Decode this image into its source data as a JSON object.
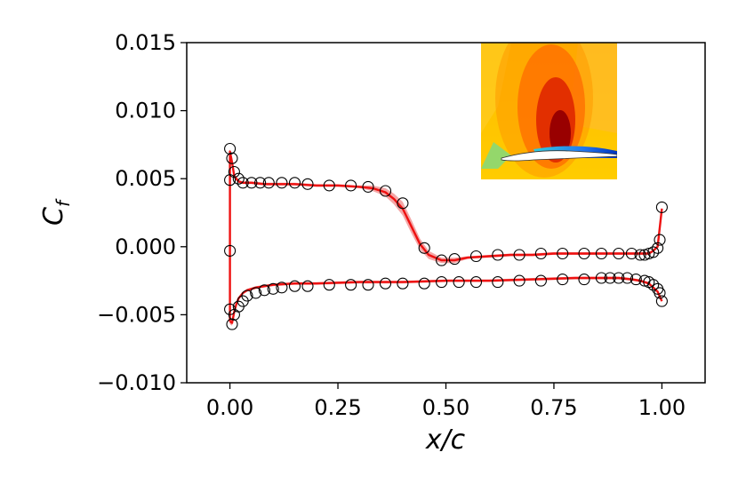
{
  "chart_data": {
    "type": "line",
    "xlabel": "x/c",
    "ylabel": "C",
    "ylabel_sub": "f",
    "xlim": [
      -0.1,
      1.1
    ],
    "ylim": [
      -0.01,
      0.015
    ],
    "xticks": [
      0.0,
      0.25,
      0.5,
      0.75,
      1.0
    ],
    "xtick_labels": [
      "0.00",
      "0.25",
      "0.50",
      "0.75",
      "1.00"
    ],
    "yticks": [
      -0.01,
      -0.005,
      0.0,
      0.005,
      0.01,
      0.015
    ],
    "ytick_labels": [
      "−0.010",
      "−0.005",
      "0.000",
      "0.005",
      "0.010",
      "0.015"
    ],
    "grid": false,
    "colors": {
      "line": "#ee1111",
      "band": "#f08a8a",
      "marker": "#000000"
    },
    "series": [
      {
        "kind": "line",
        "color": "#ee1111",
        "x": [
          0.0,
          0.0,
          0.005,
          0.01,
          0.02,
          0.03,
          0.05,
          0.08,
          0.1,
          0.15,
          0.2,
          0.25,
          0.3,
          0.33,
          0.36,
          0.38,
          0.4,
          0.42,
          0.44,
          0.46,
          0.49,
          0.52,
          0.55,
          0.6,
          0.65,
          0.7,
          0.75,
          0.8,
          0.85,
          0.9,
          0.93,
          0.95,
          0.97,
          0.98,
          0.99,
          1.0
        ],
        "y": [
          -0.0055,
          0.007,
          0.0062,
          0.0052,
          0.0048,
          0.0047,
          0.0047,
          0.0046,
          0.0046,
          0.0046,
          0.0045,
          0.0045,
          0.0044,
          0.0043,
          0.004,
          0.0035,
          0.0028,
          0.0015,
          0.0002,
          -0.0006,
          -0.001,
          -0.001,
          -0.0008,
          -0.0007,
          -0.0006,
          -0.0006,
          -0.0005,
          -0.0005,
          -0.0005,
          -0.0005,
          -0.0005,
          -0.0005,
          -0.0005,
          -0.0003,
          0.0,
          0.0028
        ],
        "band": [
          0.0002,
          0.0002,
          0.0002,
          0.0002,
          0.0001,
          0.0001,
          0.0001,
          0.0001,
          0.0001,
          0.0001,
          0.0001,
          0.0001,
          0.0001,
          0.0002,
          0.0003,
          0.0004,
          0.0005,
          0.0005,
          0.0004,
          0.0003,
          0.0002,
          0.0002,
          0.0001,
          0.0001,
          0.0001,
          0.0001,
          0.0001,
          0.0001,
          0.0001,
          0.0001,
          0.0001,
          0.0001,
          0.0001,
          0.0001,
          0.0001,
          0.0001
        ]
      },
      {
        "kind": "line",
        "color": "#ee1111",
        "x": [
          0.0,
          0.005,
          0.01,
          0.015,
          0.02,
          0.03,
          0.04,
          0.06,
          0.08,
          0.1,
          0.15,
          0.2,
          0.3,
          0.4,
          0.5,
          0.6,
          0.7,
          0.8,
          0.85,
          0.9,
          0.93,
          0.95,
          0.97,
          0.98,
          0.99,
          1.0
        ],
        "y": [
          -0.0055,
          -0.0056,
          -0.0048,
          -0.0042,
          -0.0038,
          -0.0034,
          -0.0032,
          -0.003,
          -0.0029,
          -0.0028,
          -0.0027,
          -0.0027,
          -0.0026,
          -0.0026,
          -0.0025,
          -0.0025,
          -0.0024,
          -0.0023,
          -0.0023,
          -0.0023,
          -0.0024,
          -0.0025,
          -0.0027,
          -0.003,
          -0.0033,
          -0.004
        ],
        "band": [
          0.0002,
          0.0002,
          0.0002,
          0.0001,
          0.0001,
          0.0001,
          0.0001,
          0.0001,
          0.0001,
          0.0001,
          0.0001,
          0.0001,
          0.0001,
          0.0001,
          0.0001,
          0.0001,
          0.0001,
          0.0001,
          0.0001,
          0.0001,
          0.0001,
          0.0001,
          0.0001,
          0.0001,
          0.0001,
          0.0001
        ]
      },
      {
        "kind": "markers",
        "marker": "open-circle",
        "x": [
          0.0,
          0.0,
          0.0,
          0.005,
          0.01,
          0.02,
          0.03,
          0.05,
          0.07,
          0.09,
          0.12,
          0.15,
          0.18,
          0.23,
          0.28,
          0.32,
          0.36,
          0.4,
          0.45,
          0.49,
          0.52,
          0.57,
          0.62,
          0.67,
          0.72,
          0.77,
          0.82,
          0.86,
          0.9,
          0.93,
          0.95,
          0.96,
          0.97,
          0.98,
          0.99,
          0.995,
          1.0
        ],
        "y": [
          0.0072,
          0.0049,
          -0.0003,
          0.0065,
          0.0055,
          0.005,
          0.0047,
          0.0047,
          0.0047,
          0.0047,
          0.0047,
          0.0047,
          0.0046,
          0.0045,
          0.0045,
          0.0044,
          0.0041,
          0.0032,
          -0.0001,
          -0.001,
          -0.0009,
          -0.0007,
          -0.0006,
          -0.0006,
          -0.0005,
          -0.0005,
          -0.0005,
          -0.0005,
          -0.0005,
          -0.0005,
          -0.0006,
          -0.0006,
          -0.0005,
          -0.0004,
          -0.0001,
          0.0005,
          0.0029
        ]
      },
      {
        "kind": "markers",
        "marker": "open-circle",
        "x": [
          0.0,
          0.005,
          0.01,
          0.02,
          0.03,
          0.04,
          0.06,
          0.08,
          0.1,
          0.12,
          0.15,
          0.18,
          0.23,
          0.28,
          0.32,
          0.36,
          0.4,
          0.45,
          0.49,
          0.53,
          0.57,
          0.62,
          0.67,
          0.72,
          0.77,
          0.82,
          0.86,
          0.88,
          0.9,
          0.92,
          0.94,
          0.96,
          0.97,
          0.98,
          0.99,
          0.995,
          1.0
        ],
        "y": [
          -0.0046,
          -0.0057,
          -0.005,
          -0.0044,
          -0.004,
          -0.0036,
          -0.0034,
          -0.0032,
          -0.0031,
          -0.003,
          -0.0029,
          -0.0029,
          -0.0028,
          -0.0028,
          -0.0028,
          -0.0027,
          -0.0027,
          -0.0027,
          -0.0026,
          -0.0026,
          -0.0026,
          -0.0026,
          -0.0025,
          -0.0025,
          -0.0024,
          -0.0024,
          -0.0023,
          -0.0023,
          -0.0023,
          -0.0023,
          -0.0024,
          -0.0025,
          -0.0026,
          -0.0028,
          -0.0031,
          -0.0034,
          -0.004
        ]
      }
    ],
    "inset": {
      "type": "heatmap",
      "colormap": "jet",
      "colors": [
        "#ffcc00",
        "#ff9900",
        "#ff6600",
        "#ee2200",
        "#aa0000",
        "#33ccdd",
        "#0044cc"
      ]
    }
  }
}
